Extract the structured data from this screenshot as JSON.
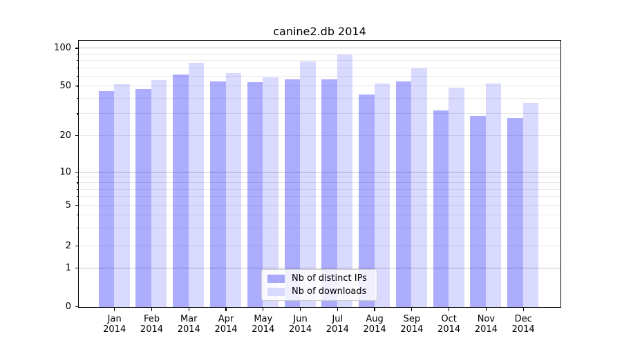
{
  "title": "canine2.db 2014",
  "legend": {
    "items": [
      {
        "label": "Nb of distinct IPs",
        "color": "#a9a9fa"
      },
      {
        "label": "Nb of downloads",
        "color": "#d9d9fb"
      }
    ]
  },
  "chart_data": {
    "type": "bar",
    "title": "canine2.db 2014",
    "categories": [
      "Jan",
      "Feb",
      "Mar",
      "Apr",
      "May",
      "Jun",
      "Jul",
      "Aug",
      "Sep",
      "Oct",
      "Nov",
      "Dec"
    ],
    "x_year": "2014",
    "series": [
      {
        "name": "Nb of distinct IPs",
        "values": [
          46,
          48,
          62,
          55,
          54,
          57,
          57,
          43,
          55,
          32,
          29,
          28
        ],
        "bar_color": "rgba(10,10,250,0.335)",
        "legend_color": "#a9a9fa"
      },
      {
        "name": "Nb of downloads",
        "values": [
          52,
          56,
          77,
          64,
          59,
          79,
          90,
          53,
          70,
          49,
          53,
          37
        ],
        "bar_color": "rgba(10,10,250,0.15)",
        "legend_color": "#d9d9fb"
      }
    ],
    "yscale": "asinh (log-like scale including 0)",
    "ylim": [
      0,
      110
    ],
    "yaxis": {
      "tick_values": [
        0,
        1,
        2,
        5,
        10,
        20,
        50,
        100
      ],
      "tick_labels": [
        "0",
        "1",
        "2",
        "5",
        "10",
        "20",
        "50",
        "100"
      ],
      "major_gridlines": [
        1,
        10,
        100
      ],
      "minor_gridlines": [
        2,
        3,
        4,
        5,
        6,
        7,
        8,
        9,
        20,
        30,
        40,
        50,
        60,
        70,
        80,
        90
      ]
    },
    "grid": "horizontal, major darker + minor lighter, drawn behind translucent bars",
    "legend_position": "lower center"
  }
}
